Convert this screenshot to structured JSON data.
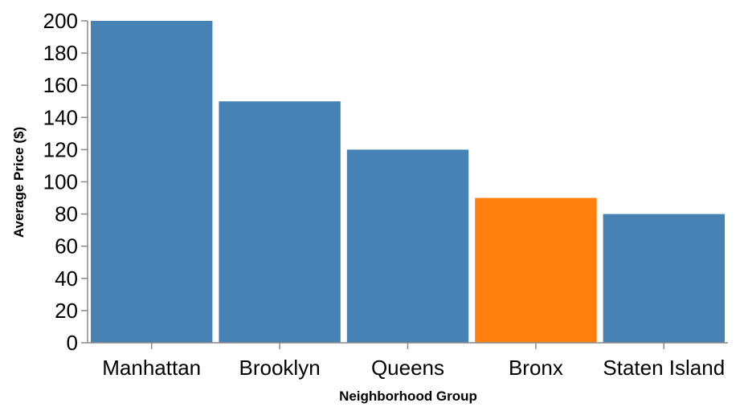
{
  "chart_data": {
    "type": "bar",
    "title": "",
    "xlabel": "Neighborhood Group",
    "ylabel": "Average Price ($)",
    "categories": [
      "Manhattan",
      "Brooklyn",
      "Queens",
      "Bronx",
      "Staten Island"
    ],
    "values": [
      200,
      150,
      120,
      90,
      80
    ],
    "ylim": [
      0,
      200
    ],
    "yticks": [
      "0",
      "20",
      "40",
      "60",
      "80",
      "100",
      "120",
      "140",
      "160",
      "180",
      "200"
    ],
    "bar_color": "#4682b4",
    "highlight_color": "#ff7f0e",
    "highlight_category": "Bronx",
    "grid": false
  }
}
